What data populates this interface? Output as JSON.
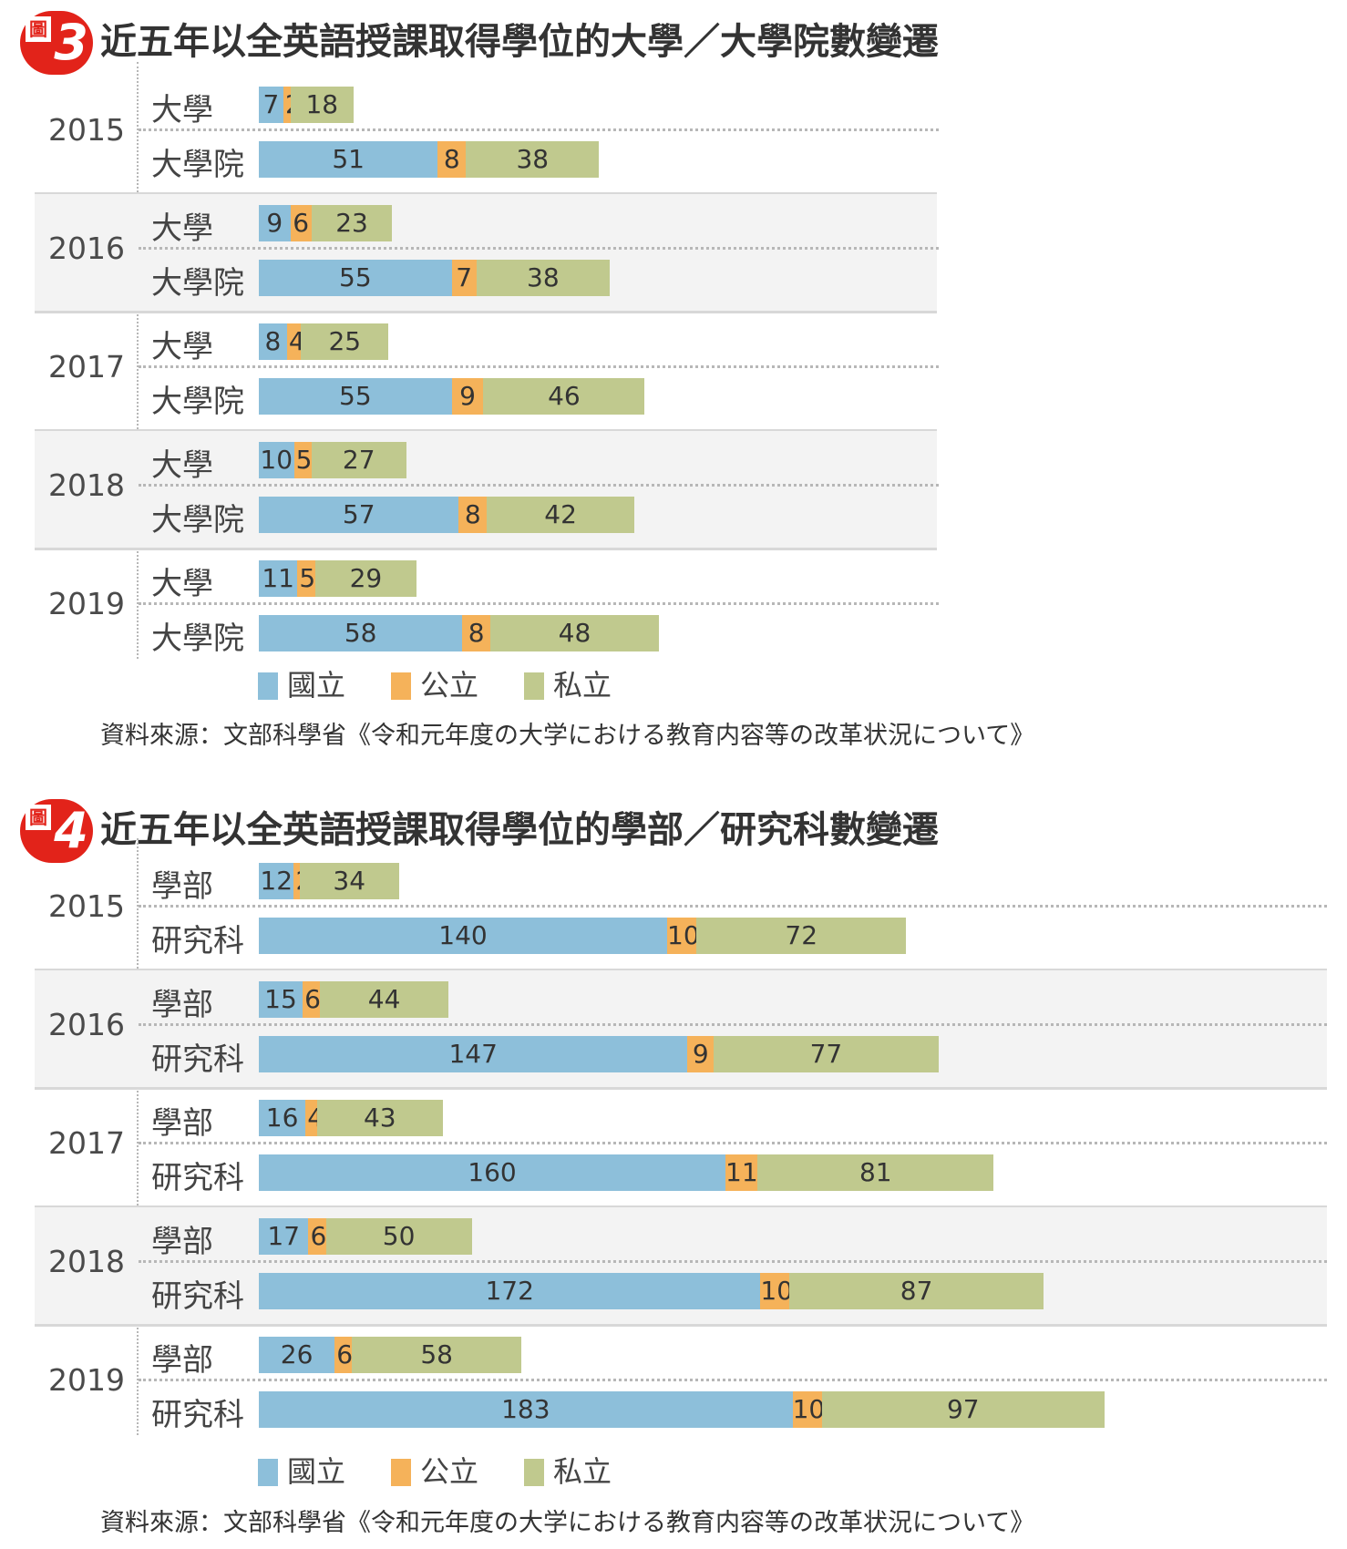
{
  "colors": {
    "national": "#8dbfda",
    "public": "#f5b25a",
    "private": "#c0c98e"
  },
  "chart_data": [
    {
      "type": "bar",
      "orientation": "horizontal-stacked",
      "badge_prefix": "圖",
      "badge_number": "3",
      "title": "近五年以全英語授課取得學位的大學／大學院數變遷",
      "category_types": [
        "大學",
        "大學院"
      ],
      "legend": [
        "國立",
        "公立",
        "私立"
      ],
      "legend_position": "bottom",
      "source": "資料來源：文部科學省《令和元年度の大学における教育内容等の改革状況について》",
      "groups": [
        {
          "year": "2015",
          "rows": [
            {
              "category": "大學",
              "values": [
                7,
                2,
                18
              ]
            },
            {
              "category": "大學院",
              "values": [
                51,
                8,
                38
              ]
            }
          ]
        },
        {
          "year": "2016",
          "rows": [
            {
              "category": "大學",
              "values": [
                9,
                6,
                23
              ]
            },
            {
              "category": "大學院",
              "values": [
                55,
                7,
                38
              ]
            }
          ]
        },
        {
          "year": "2017",
          "rows": [
            {
              "category": "大學",
              "values": [
                8,
                4,
                25
              ]
            },
            {
              "category": "大學院",
              "values": [
                55,
                9,
                46
              ]
            }
          ]
        },
        {
          "year": "2018",
          "rows": [
            {
              "category": "大學",
              "values": [
                10,
                5,
                27
              ]
            },
            {
              "category": "大學院",
              "values": [
                57,
                8,
                42
              ]
            }
          ]
        },
        {
          "year": "2019",
          "rows": [
            {
              "category": "大學",
              "values": [
                11,
                5,
                29
              ]
            },
            {
              "category": "大學院",
              "values": [
                58,
                8,
                48
              ]
            }
          ]
        }
      ]
    },
    {
      "type": "bar",
      "orientation": "horizontal-stacked",
      "badge_prefix": "圖",
      "badge_number": "4",
      "title": "近五年以全英語授課取得學位的學部／研究科數變遷",
      "category_types": [
        "學部",
        "研究科"
      ],
      "legend": [
        "國立",
        "公立",
        "私立"
      ],
      "legend_position": "bottom",
      "source": "資料來源：文部科學省《令和元年度の大学における教育内容等の改革状況について》",
      "groups": [
        {
          "year": "2015",
          "rows": [
            {
              "category": "學部",
              "values": [
                12,
                2,
                34
              ]
            },
            {
              "category": "研究科",
              "values": [
                140,
                10,
                72
              ]
            }
          ]
        },
        {
          "year": "2016",
          "rows": [
            {
              "category": "學部",
              "values": [
                15,
                6,
                44
              ]
            },
            {
              "category": "研究科",
              "values": [
                147,
                9,
                77
              ]
            }
          ]
        },
        {
          "year": "2017",
          "rows": [
            {
              "category": "學部",
              "values": [
                16,
                4,
                43
              ]
            },
            {
              "category": "研究科",
              "values": [
                160,
                11,
                81
              ]
            }
          ]
        },
        {
          "year": "2018",
          "rows": [
            {
              "category": "學部",
              "values": [
                17,
                6,
                50
              ]
            },
            {
              "category": "研究科",
              "values": [
                172,
                10,
                87
              ]
            }
          ]
        },
        {
          "year": "2019",
          "rows": [
            {
              "category": "學部",
              "values": [
                26,
                6,
                58
              ]
            },
            {
              "category": "研究科",
              "values": [
                183,
                10,
                97
              ]
            }
          ]
        }
      ]
    }
  ]
}
